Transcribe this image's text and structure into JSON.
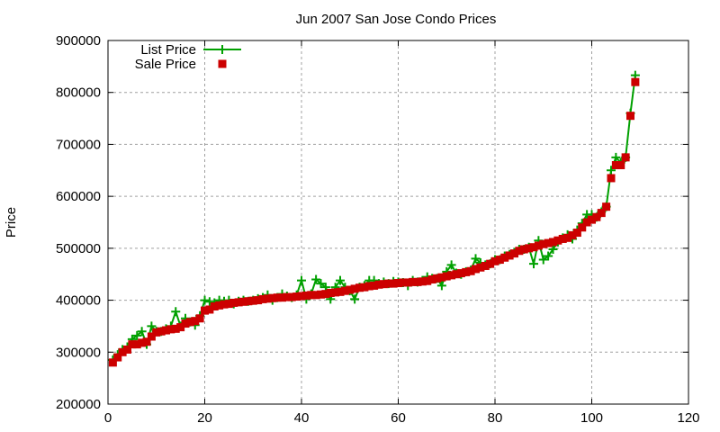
{
  "chart_data": {
    "type": "line",
    "title": "Jun 2007 San Jose Condo Prices",
    "xlabel": "",
    "ylabel": "Price",
    "xlim": [
      0,
      120
    ],
    "ylim": [
      200000,
      900000
    ],
    "xticks": [
      0,
      20,
      40,
      60,
      80,
      100,
      120
    ],
    "yticks": [
      200000,
      300000,
      400000,
      500000,
      600000,
      700000,
      800000,
      900000
    ],
    "grid": true,
    "legend_position": "top-left",
    "colors": {
      "list": "#00a000",
      "sale": "#cc0000"
    },
    "series": [
      {
        "name": "List Price",
        "style": "linespoints",
        "marker": "plus",
        "values": [
          285000,
          295000,
          305000,
          310000,
          325000,
          332000,
          340000,
          315000,
          350000,
          340000,
          340000,
          345000,
          350000,
          378000,
          350000,
          365000,
          358000,
          352000,
          370000,
          400000,
          397000,
          395000,
          400000,
          398000,
          400000,
          393000,
          398000,
          400000,
          398000,
          400000,
          403000,
          405000,
          410000,
          400000,
          405000,
          412000,
          408000,
          405000,
          410000,
          438000,
          402000,
          412000,
          440000,
          432000,
          425000,
          402000,
          425000,
          438000,
          425000,
          418000,
          402000,
          425000,
          428000,
          438000,
          438000,
          432000,
          435000,
          432000,
          436000,
          435000,
          434000,
          428000,
          438000,
          435000,
          438000,
          445000,
          442000,
          442000,
          428000,
          455000,
          468000,
          452000,
          450000,
          455000,
          458000,
          480000,
          472000,
          468000,
          470000,
          478000,
          478000,
          485000,
          488000,
          492000,
          498000,
          498000,
          502000,
          470000,
          515000,
          478000,
          485000,
          498000,
          512000,
          520000,
          526000,
          518000,
          535000,
          548000,
          565000,
          565000,
          560000,
          570000,
          580000,
          650000,
          675000,
          665000,
          675000,
          760000,
          833000
        ]
      },
      {
        "name": "Sale Price",
        "style": "points",
        "marker": "square",
        "values": [
          280000,
          290000,
          300000,
          305000,
          315000,
          315000,
          318000,
          320000,
          330000,
          338000,
          340000,
          342000,
          344000,
          345000,
          348000,
          355000,
          358000,
          360000,
          365000,
          380000,
          382000,
          388000,
          390000,
          392000,
          393000,
          395000,
          396000,
          397000,
          398000,
          399000,
          400000,
          402000,
          403000,
          404000,
          405000,
          405000,
          406000,
          406000,
          407000,
          408000,
          409000,
          410000,
          410000,
          411000,
          412000,
          414000,
          415000,
          416000,
          418000,
          420000,
          422000,
          424000,
          425000,
          427000,
          428000,
          430000,
          431000,
          432000,
          432000,
          433000,
          434000,
          434000,
          435000,
          435000,
          436000,
          437000,
          440000,
          442000,
          444000,
          446000,
          448000,
          450000,
          452000,
          454000,
          456000,
          460000,
          463000,
          466000,
          470000,
          475000,
          478000,
          482000,
          486000,
          490000,
          495000,
          498000,
          500000,
          502000,
          505000,
          508000,
          510000,
          512000,
          515000,
          518000,
          520000,
          525000,
          530000,
          540000,
          550000,
          555000,
          560000,
          568000,
          580000,
          635000,
          660000,
          660000,
          675000,
          755000,
          820000
        ]
      }
    ]
  }
}
